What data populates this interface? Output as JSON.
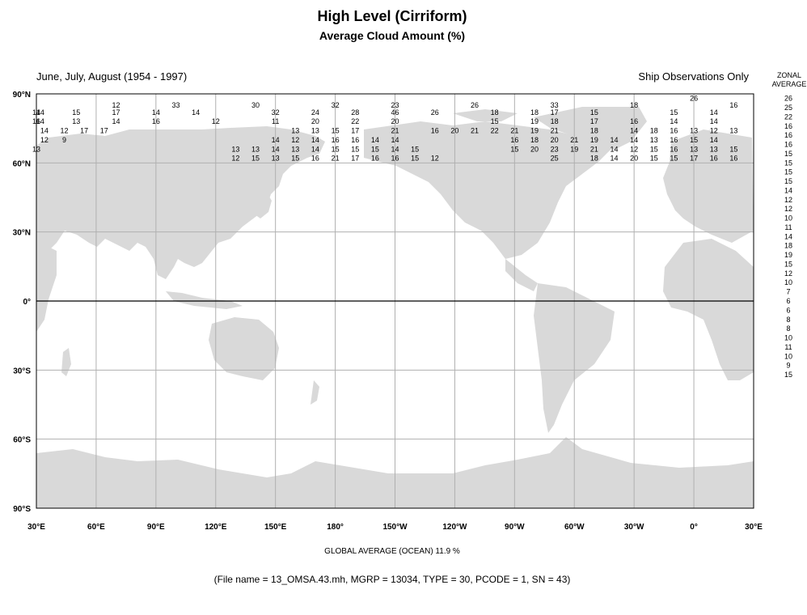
{
  "title": "High Level (Cirriform)",
  "subtitle": "Average Cloud Amount (%)",
  "season": "June, July, August (1954 - 1997)",
  "source_note": "Ship Observations Only",
  "zonal_header": [
    "ZONAL",
    "AVERAGE"
  ],
  "lat_labels": [
    "90°N",
    "60°N",
    "30°N",
    "0°",
    "30°S",
    "60°S",
    "90°S"
  ],
  "lon_labels": [
    "30°E",
    "60°E",
    "90°E",
    "120°E",
    "150°E",
    "180°",
    "150°W",
    "120°W",
    "90°W",
    "60°W",
    "30°W",
    "0°",
    "30°E"
  ],
  "zonal_average": [
    "26",
    "25",
    "22",
    "16",
    "16",
    "16",
    "15",
    "15",
    "15",
    "15",
    "14",
    "12",
    "12",
    "10",
    "11",
    "14",
    "18",
    "19",
    "15",
    "12",
    "10",
    "7",
    "6",
    "6",
    "8",
    "8",
    "10",
    "11",
    "10",
    "9",
    "15"
  ],
  "grid_values": [
    {
      "lat": 85,
      "lon": 100,
      "v": "33"
    },
    {
      "lat": 85,
      "lon": 70,
      "v": "12"
    },
    {
      "lat": 85,
      "lon": 140,
      "v": "30"
    },
    {
      "lat": 85,
      "lon": 180,
      "v": "32"
    },
    {
      "lat": 85,
      "lon": -150,
      "v": "23"
    },
    {
      "lat": 85,
      "lon": -110,
      "v": "26"
    },
    {
      "lat": 85,
      "lon": -70,
      "v": "33"
    },
    {
      "lat": 85,
      "lon": -30,
      "v": "18"
    },
    {
      "lat": 85,
      "lon": 20,
      "v": "16"
    },
    {
      "lat": 88,
      "lon": 0,
      "v": "26"
    },
    {
      "lat": 82,
      "lon": 32,
      "v": "14"
    },
    {
      "lat": 82,
      "lon": 50,
      "v": "15"
    },
    {
      "lat": 82,
      "lon": 70,
      "v": "17"
    },
    {
      "lat": 82,
      "lon": 90,
      "v": "14"
    },
    {
      "lat": 82,
      "lon": 110,
      "v": "14"
    },
    {
      "lat": 82,
      "lon": 150,
      "v": "32"
    },
    {
      "lat": 82,
      "lon": 170,
      "v": "24"
    },
    {
      "lat": 82,
      "lon": 190,
      "v": "28"
    },
    {
      "lat": 82,
      "lon": -150,
      "v": "46"
    },
    {
      "lat": 82,
      "lon": -130,
      "v": "26"
    },
    {
      "lat": 82,
      "lon": -100,
      "v": "18"
    },
    {
      "lat": 82,
      "lon": -80,
      "v": "18"
    },
    {
      "lat": 82,
      "lon": -70,
      "v": "17"
    },
    {
      "lat": 82,
      "lon": -50,
      "v": "15"
    },
    {
      "lat": 82,
      "lon": -10,
      "v": "15"
    },
    {
      "lat": 82,
      "lon": 10,
      "v": "14"
    },
    {
      "lat": 82,
      "lon": 30,
      "v": "14"
    },
    {
      "lat": 78,
      "lon": 32,
      "v": "14"
    },
    {
      "lat": 78,
      "lon": 50,
      "v": "13"
    },
    {
      "lat": 78,
      "lon": 70,
      "v": "14"
    },
    {
      "lat": 78,
      "lon": 90,
      "v": "16"
    },
    {
      "lat": 78,
      "lon": 120,
      "v": "12"
    },
    {
      "lat": 78,
      "lon": 150,
      "v": "11"
    },
    {
      "lat": 78,
      "lon": 170,
      "v": "20"
    },
    {
      "lat": 78,
      "lon": 190,
      "v": "22"
    },
    {
      "lat": 78,
      "lon": -150,
      "v": "20"
    },
    {
      "lat": 78,
      "lon": -100,
      "v": "15"
    },
    {
      "lat": 78,
      "lon": -80,
      "v": "19"
    },
    {
      "lat": 78,
      "lon": -70,
      "v": "18"
    },
    {
      "lat": 78,
      "lon": -50,
      "v": "17"
    },
    {
      "lat": 78,
      "lon": -30,
      "v": "16"
    },
    {
      "lat": 78,
      "lon": -10,
      "v": "14"
    },
    {
      "lat": 78,
      "lon": 10,
      "v": "14"
    },
    {
      "lat": 78,
      "lon": 30,
      "v": "16"
    },
    {
      "lat": 74,
      "lon": 34,
      "v": "14"
    },
    {
      "lat": 74,
      "lon": 44,
      "v": "12"
    },
    {
      "lat": 74,
      "lon": 54,
      "v": "17"
    },
    {
      "lat": 74,
      "lon": 64,
      "v": "17"
    },
    {
      "lat": 74,
      "lon": 160,
      "v": "13"
    },
    {
      "lat": 74,
      "lon": 170,
      "v": "13"
    },
    {
      "lat": 74,
      "lon": 180,
      "v": "15"
    },
    {
      "lat": 74,
      "lon": 190,
      "v": "17"
    },
    {
      "lat": 74,
      "lon": -150,
      "v": "21"
    },
    {
      "lat": 74,
      "lon": -130,
      "v": "16"
    },
    {
      "lat": 74,
      "lon": -120,
      "v": "20"
    },
    {
      "lat": 74,
      "lon": -110,
      "v": "21"
    },
    {
      "lat": 74,
      "lon": -100,
      "v": "22"
    },
    {
      "lat": 74,
      "lon": -90,
      "v": "21"
    },
    {
      "lat": 74,
      "lon": -80,
      "v": "19"
    },
    {
      "lat": 74,
      "lon": -70,
      "v": "21"
    },
    {
      "lat": 74,
      "lon": -50,
      "v": "18"
    },
    {
      "lat": 74,
      "lon": -30,
      "v": "14"
    },
    {
      "lat": 74,
      "lon": -20,
      "v": "18"
    },
    {
      "lat": 74,
      "lon": -10,
      "v": "16"
    },
    {
      "lat": 74,
      "lon": 0,
      "v": "13"
    },
    {
      "lat": 74,
      "lon": 10,
      "v": "12"
    },
    {
      "lat": 74,
      "lon": 20,
      "v": "13"
    },
    {
      "lat": 70,
      "lon": 34,
      "v": "12"
    },
    {
      "lat": 70,
      "lon": 44,
      "v": "9"
    },
    {
      "lat": 70,
      "lon": 150,
      "v": "14"
    },
    {
      "lat": 70,
      "lon": 160,
      "v": "12"
    },
    {
      "lat": 70,
      "lon": 170,
      "v": "14"
    },
    {
      "lat": 70,
      "lon": 180,
      "v": "16"
    },
    {
      "lat": 70,
      "lon": 190,
      "v": "16"
    },
    {
      "lat": 70,
      "lon": -160,
      "v": "14"
    },
    {
      "lat": 70,
      "lon": -150,
      "v": "14"
    },
    {
      "lat": 70,
      "lon": -90,
      "v": "16"
    },
    {
      "lat": 70,
      "lon": -80,
      "v": "18"
    },
    {
      "lat": 70,
      "lon": -70,
      "v": "20"
    },
    {
      "lat": 70,
      "lon": -60,
      "v": "21"
    },
    {
      "lat": 70,
      "lon": -50,
      "v": "19"
    },
    {
      "lat": 70,
      "lon": -40,
      "v": "14"
    },
    {
      "lat": 70,
      "lon": -30,
      "v": "14"
    },
    {
      "lat": 70,
      "lon": -20,
      "v": "13"
    },
    {
      "lat": 70,
      "lon": -10,
      "v": "16"
    },
    {
      "lat": 70,
      "lon": 0,
      "v": "15"
    },
    {
      "lat": 70,
      "lon": 10,
      "v": "14"
    },
    {
      "lat": 66,
      "lon": 130,
      "v": "13"
    },
    {
      "lat": 66,
      "lon": 140,
      "v": "13"
    },
    {
      "lat": 66,
      "lon": 150,
      "v": "14"
    },
    {
      "lat": 66,
      "lon": 160,
      "v": "13"
    },
    {
      "lat": 66,
      "lon": 170,
      "v": "14"
    },
    {
      "lat": 66,
      "lon": 180,
      "v": "15"
    },
    {
      "lat": 66,
      "lon": 190,
      "v": "15"
    },
    {
      "lat": 66,
      "lon": -160,
      "v": "15"
    },
    {
      "lat": 66,
      "lon": -150,
      "v": "14"
    },
    {
      "lat": 66,
      "lon": -140,
      "v": "15"
    },
    {
      "lat": 66,
      "lon": -90,
      "v": "15"
    },
    {
      "lat": 66,
      "lon": -80,
      "v": "20"
    },
    {
      "lat": 66,
      "lon": -70,
      "v": "23"
    },
    {
      "lat": 66,
      "lon": -60,
      "v": "19"
    },
    {
      "lat": 66,
      "lon": -50,
      "v": "21"
    },
    {
      "lat": 66,
      "lon": -40,
      "v": "14"
    },
    {
      "lat": 66,
      "lon": -30,
      "v": "12"
    },
    {
      "lat": 66,
      "lon": -20,
      "v": "15"
    },
    {
      "lat": 66,
      "lon": -10,
      "v": "16"
    },
    {
      "lat": 66,
      "lon": 0,
      "v": "13"
    },
    {
      "lat": 66,
      "lon": 10,
      "v": "13"
    },
    {
      "lat": 66,
      "lon": 20,
      "v": "15"
    },
    {
      "lat": 66,
      "lon": 30,
      "v": "13"
    },
    {
      "lat": 62,
      "lon": 130,
      "v": "12"
    },
    {
      "lat": 62,
      "lon": 140,
      "v": "15"
    },
    {
      "lat": 62,
      "lon": 150,
      "v": "13"
    },
    {
      "lat": 62,
      "lon": 160,
      "v": "15"
    },
    {
      "lat": 62,
      "lon": 170,
      "v": "16"
    },
    {
      "lat": 62,
      "lon": 180,
      "v": "21"
    },
    {
      "lat": 62,
      "lon": 190,
      "v": "17"
    },
    {
      "lat": 62,
      "lon": -160,
      "v": "16"
    },
    {
      "lat": 62,
      "lon": -150,
      "v": "16"
    },
    {
      "lat": 62,
      "lon": -140,
      "v": "15"
    },
    {
      "lat": 62,
      "lon": -130,
      "v": "12"
    },
    {
      "lat": 62,
      "lon": -70,
      "v": "25"
    },
    {
      "lat": 62,
      "lon": -50,
      "v": "18"
    },
    {
      "lat": 62,
      "lon": -40,
      "v": "14"
    },
    {
      "lat": 62,
      "lon": -30,
      "v": "20"
    },
    {
      "lat": 62,
      "lon": -20,
      "v": "15"
    },
    {
      "lat": 62,
      "lon": -10,
      "v": "15"
    },
    {
      "lat": 62,
      "lon": 0,
      "v": "17"
    },
    {
      "lat": 62,
      "lon": 10,
      "v": "16"
    },
    {
      "lat": 62,
      "lon": 20,
      "v": "16"
    }
  ],
  "global_average": "GLOBAL AVERAGE (OCEAN)   11.9 %",
  "file_info": "(File name = 13_OMSA.43.mh, MGRP = 13034, TYPE = 30, PCODE = 1, SN = 43)"
}
